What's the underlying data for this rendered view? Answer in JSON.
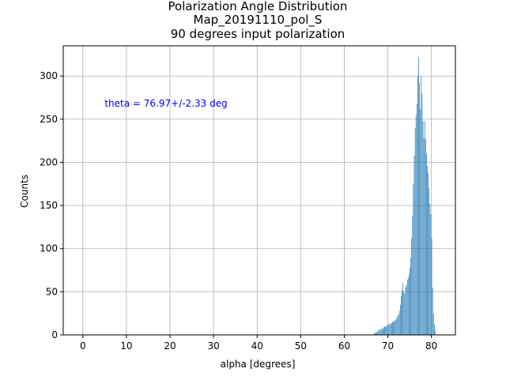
{
  "chart_data": {
    "type": "bar",
    "title_lines": [
      "Polarization Angle Distribution",
      "Map_20191110_pol_S",
      "90 degrees input polarization"
    ],
    "xlabel": "alpha [degrees]",
    "ylabel": "Counts",
    "xlim": [
      -4.5,
      85.5
    ],
    "ylim": [
      0,
      335
    ],
    "xticks": [
      0,
      10,
      20,
      30,
      40,
      50,
      60,
      70,
      80
    ],
    "yticks": [
      0,
      50,
      100,
      150,
      200,
      250,
      300
    ],
    "grid": true,
    "bar_color": "#1f77b4",
    "annotation": {
      "text": "theta = 76.97+/-2.33 deg",
      "x": 5,
      "y": 268,
      "color": "#0000ff"
    },
    "bin_width": 0.1,
    "bins": [
      [
        66.6,
        1
      ],
      [
        66.8,
        2
      ],
      [
        67.0,
        2
      ],
      [
        67.2,
        3
      ],
      [
        67.4,
        3
      ],
      [
        67.6,
        4
      ],
      [
        67.8,
        6
      ],
      [
        68.0,
        5
      ],
      [
        68.2,
        7
      ],
      [
        68.4,
        6
      ],
      [
        68.6,
        8
      ],
      [
        68.8,
        7
      ],
      [
        69.0,
        9
      ],
      [
        69.2,
        10
      ],
      [
        69.4,
        9
      ],
      [
        69.6,
        11
      ],
      [
        69.8,
        10
      ],
      [
        70.0,
        12
      ],
      [
        70.2,
        13
      ],
      [
        70.4,
        12
      ],
      [
        70.6,
        14
      ],
      [
        70.8,
        13
      ],
      [
        71.0,
        15
      ],
      [
        71.2,
        16
      ],
      [
        71.4,
        15
      ],
      [
        71.6,
        17
      ],
      [
        71.8,
        18
      ],
      [
        72.0,
        20
      ],
      [
        72.2,
        22
      ],
      [
        72.4,
        24
      ],
      [
        72.6,
        28
      ],
      [
        72.8,
        35
      ],
      [
        73.0,
        45
      ],
      [
        73.2,
        52
      ],
      [
        73.4,
        60
      ],
      [
        73.6,
        50
      ],
      [
        73.8,
        48
      ],
      [
        74.0,
        55
      ],
      [
        74.2,
        58
      ],
      [
        74.4,
        64
      ],
      [
        74.6,
        66
      ],
      [
        74.8,
        70
      ],
      [
        75.0,
        78
      ],
      [
        75.2,
        90
      ],
      [
        75.4,
        112
      ],
      [
        75.6,
        138
      ],
      [
        75.8,
        175
      ],
      [
        76.0,
        208
      ],
      [
        76.2,
        240
      ],
      [
        76.4,
        255
      ],
      [
        76.6,
        268
      ],
      [
        76.8,
        300
      ],
      [
        77.0,
        322
      ],
      [
        77.2,
        292
      ],
      [
        77.4,
        262
      ],
      [
        77.6,
        300
      ],
      [
        77.8,
        280
      ],
      [
        78.0,
        248
      ],
      [
        78.2,
        228
      ],
      [
        78.4,
        248
      ],
      [
        78.6,
        226
      ],
      [
        78.8,
        210
      ],
      [
        79.0,
        196
      ],
      [
        79.2,
        188
      ],
      [
        79.4,
        170
      ],
      [
        79.6,
        152
      ],
      [
        79.8,
        140
      ],
      [
        80.0,
        112
      ],
      [
        80.2,
        55
      ],
      [
        80.4,
        25
      ],
      [
        80.6,
        12
      ],
      [
        80.8,
        5
      ]
    ]
  }
}
